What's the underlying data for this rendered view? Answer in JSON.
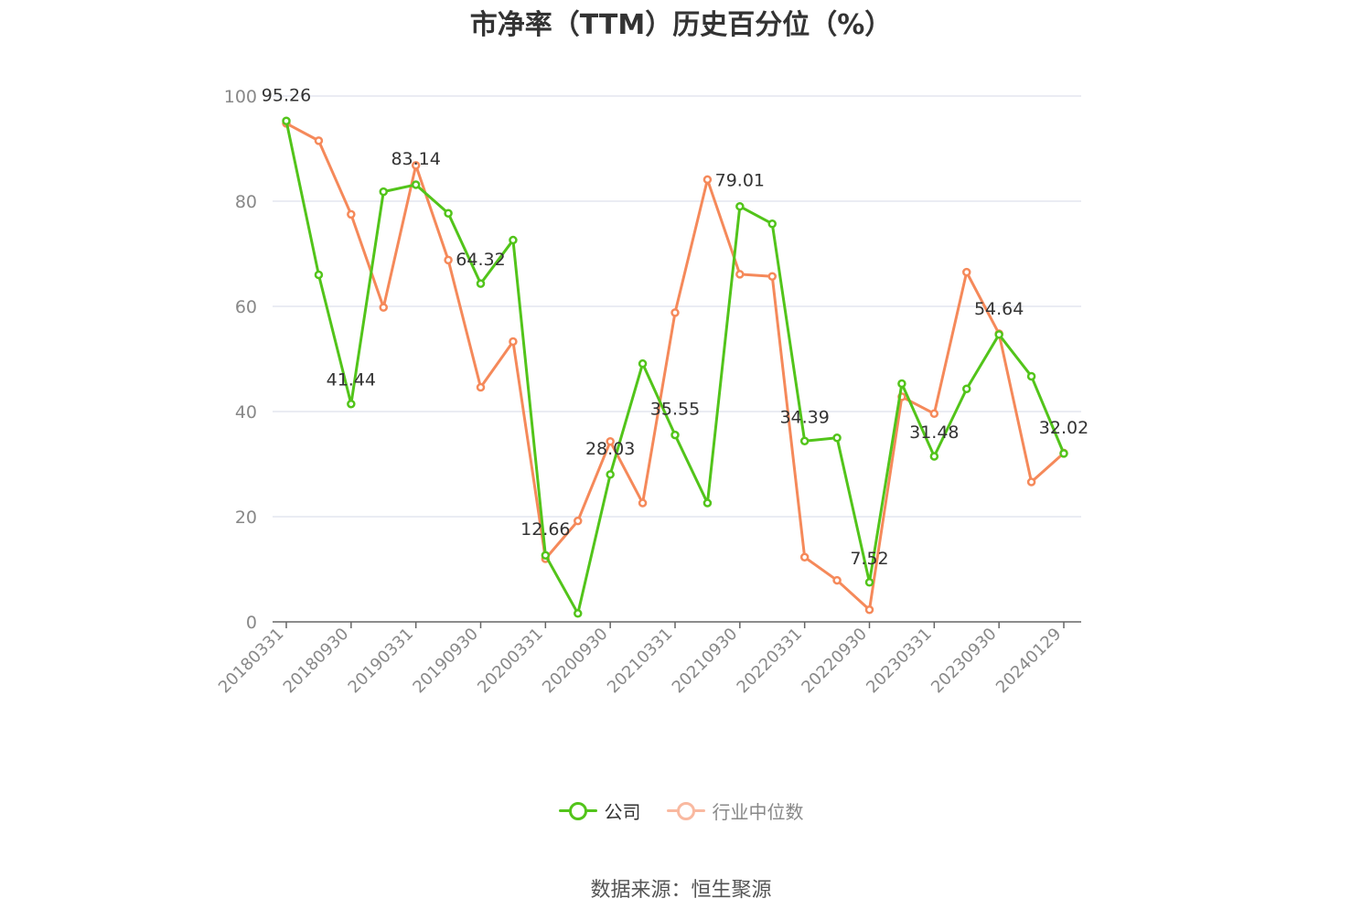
{
  "title": "市净率（TTM）历史百分位（%）",
  "source": "数据来源：恒生聚源",
  "colors": {
    "company": "#52c41a",
    "industry": "#f5895a",
    "industry_legend": "#f9b9a0",
    "grid": "#e3e6ef",
    "axis": "#666666",
    "label": "#333333"
  },
  "chart_data": {
    "type": "line",
    "ylim": [
      0,
      100
    ],
    "yticks": [
      "0",
      "20",
      "40",
      "60",
      "80",
      "100"
    ],
    "x": [
      "20180331",
      "20180630",
      "20180930",
      "20181231",
      "20190331",
      "20190630",
      "20190930",
      "20191231",
      "20200331",
      "20200630",
      "20200930",
      "20201231",
      "20210331",
      "20210630",
      "20210930",
      "20211231",
      "20220331",
      "20220630",
      "20220930",
      "20221231",
      "20230331",
      "20230630",
      "20230930",
      "20231231",
      "20240129"
    ],
    "xtick_labels": [
      "20180331",
      "20180930",
      "20190331",
      "20190930",
      "20200331",
      "20200930",
      "20210331",
      "20210930",
      "20220331",
      "20220930",
      "20230331",
      "20230930",
      "20240129"
    ],
    "legend_position": "bottom",
    "grid": true,
    "series": [
      {
        "name": "公司",
        "values": [
          95.26,
          66.0,
          41.44,
          81.8,
          83.14,
          77.7,
          64.32,
          72.6,
          12.66,
          1.6,
          28.03,
          49.1,
          35.55,
          22.6,
          79.01,
          75.7,
          34.39,
          35.0,
          7.52,
          45.3,
          31.48,
          44.3,
          54.64,
          46.7,
          32.02
        ],
        "data_labels": [
          "95.26",
          "",
          "41.44",
          "",
          "83.14",
          "",
          "64.32",
          "",
          "12.66",
          "",
          "28.03",
          "",
          "35.55",
          "",
          "79.01",
          "",
          "34.39",
          "",
          "7.52",
          "",
          "31.48",
          "",
          "54.64",
          "",
          "32.02"
        ]
      },
      {
        "name": "行业中位数",
        "values": [
          94.8,
          91.5,
          77.5,
          59.8,
          86.8,
          68.8,
          44.6,
          53.3,
          12.0,
          19.2,
          34.3,
          22.6,
          58.8,
          84.1,
          66.1,
          65.7,
          12.3,
          7.9,
          2.3,
          42.8,
          39.6,
          66.5,
          54.8,
          26.6,
          32.1
        ]
      }
    ]
  }
}
